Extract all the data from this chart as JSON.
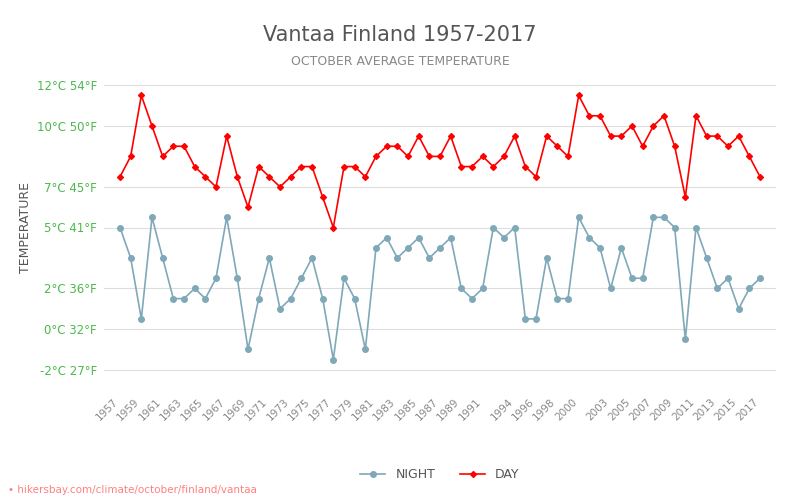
{
  "title": "Vantaa Finland 1957-2017",
  "subtitle": "OCTOBER AVERAGE TEMPERATURE",
  "ylabel": "TEMPERATURE",
  "xlabel_url": "hikersbay.com/climate/october/finland/vantaa",
  "legend_night": "NIGHT",
  "legend_day": "DAY",
  "years": [
    1957,
    1958,
    1959,
    1960,
    1961,
    1962,
    1963,
    1964,
    1965,
    1966,
    1967,
    1968,
    1969,
    1970,
    1971,
    1972,
    1973,
    1974,
    1975,
    1976,
    1977,
    1978,
    1979,
    1980,
    1981,
    1982,
    1983,
    1984,
    1985,
    1986,
    1987,
    1988,
    1989,
    1990,
    1991,
    1992,
    1993,
    1994,
    1995,
    1996,
    1997,
    1998,
    1999,
    2000,
    2001,
    2002,
    2003,
    2004,
    2005,
    2006,
    2007,
    2008,
    2009,
    2010,
    2011,
    2012,
    2013,
    2014,
    2015,
    2016,
    2017
  ],
  "day": [
    7.5,
    8.5,
    11.5,
    10.0,
    8.5,
    9.0,
    9.0,
    8.0,
    7.5,
    7.0,
    9.5,
    7.5,
    6.0,
    8.0,
    7.5,
    7.0,
    7.5,
    8.0,
    8.0,
    6.5,
    5.0,
    8.0,
    8.0,
    7.5,
    8.5,
    9.0,
    9.0,
    8.5,
    9.5,
    8.5,
    8.5,
    9.5,
    8.0,
    8.0,
    8.5,
    8.0,
    8.5,
    9.5,
    8.0,
    7.5,
    9.5,
    9.0,
    8.5,
    11.5,
    10.5,
    10.5,
    9.5,
    9.5,
    10.0,
    9.0,
    10.0,
    10.5,
    9.0,
    6.5,
    10.5,
    9.5,
    9.5,
    9.0,
    9.5,
    8.5,
    7.5
  ],
  "night": [
    5.0,
    3.5,
    0.5,
    5.5,
    3.5,
    1.5,
    1.5,
    2.0,
    1.5,
    2.5,
    5.5,
    2.5,
    -1.0,
    1.5,
    3.5,
    1.0,
    1.5,
    2.5,
    3.5,
    1.5,
    -1.5,
    2.5,
    1.5,
    -1.0,
    4.0,
    4.5,
    3.5,
    4.0,
    4.5,
    3.5,
    4.0,
    4.5,
    2.0,
    1.5,
    2.0,
    5.0,
    4.5,
    5.0,
    0.5,
    0.5,
    3.5,
    1.5,
    1.5,
    5.5,
    4.5,
    4.0,
    2.0,
    4.0,
    2.5,
    2.5,
    5.5,
    5.5,
    5.0,
    -0.5,
    5.0,
    3.5,
    2.0,
    2.5,
    1.0,
    2.0,
    2.5
  ],
  "day_color": "#ff0000",
  "night_color": "#7fa8b8",
  "title_color": "#555555",
  "subtitle_color": "#888888",
  "ylabel_color": "#555555",
  "green_label_color": "#4db84d",
  "blue_label_color": "#4477aa",
  "grid_color": "#dddddd",
  "bg_color": "#ffffff",
  "ylim_min": -3,
  "ylim_max": 13,
  "yticks_c": [
    -2,
    0,
    2,
    5,
    7,
    10,
    12
  ],
  "yticks_f": [
    27,
    32,
    36,
    41,
    45,
    50,
    54
  ],
  "xtick_years": [
    1957,
    1959,
    1961,
    1963,
    1965,
    1967,
    1969,
    1971,
    1973,
    1975,
    1977,
    1979,
    1981,
    1983,
    1985,
    1987,
    1989,
    1991,
    1994,
    1996,
    1998,
    2000,
    2003,
    2005,
    2007,
    2009,
    2011,
    2013,
    2015,
    2017
  ]
}
